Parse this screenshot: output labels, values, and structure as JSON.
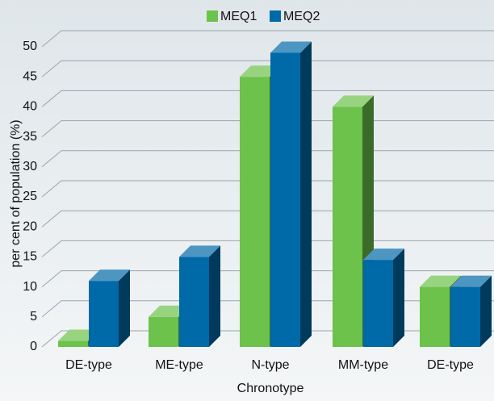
{
  "chart_data": {
    "type": "bar3d",
    "x_label": "Chronotype",
    "y_label": "per cent of population (%)",
    "categories": [
      "DE-type",
      "ME-type",
      "N-type",
      "MM-type",
      "DE-type"
    ],
    "series": [
      {
        "name": "MEQ1",
        "color": "#6cc24a",
        "values": [
          1,
          5,
          45,
          40,
          10
        ]
      },
      {
        "name": "MEQ2",
        "color": "#0069a8",
        "values": [
          11,
          15,
          49,
          14.5,
          10
        ]
      }
    ],
    "ylim": [
      0,
      50
    ],
    "yticks": [
      0,
      5,
      10,
      15,
      20,
      25,
      30,
      35,
      40,
      45,
      50
    ],
    "grid": true
  }
}
